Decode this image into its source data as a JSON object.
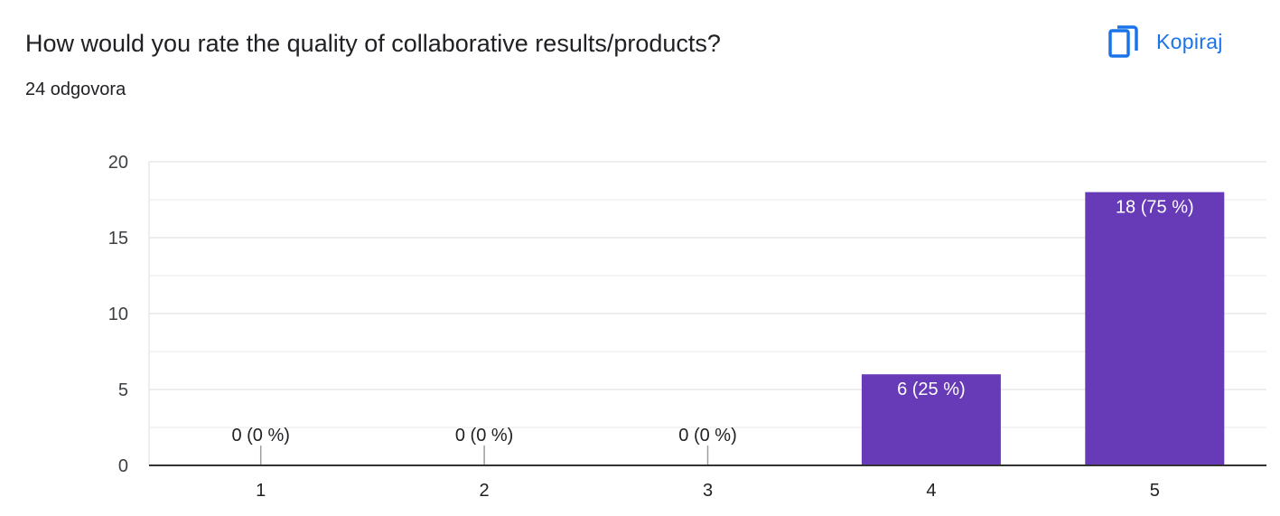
{
  "header": {
    "question": "How would you rate the quality of collaborative results/products?",
    "response_count": "24 odgovora",
    "copy_label": "Kopiraj",
    "copy_icon": "copy-icon"
  },
  "colors": {
    "bar": "#673ab7",
    "accent": "#1a73e8",
    "grid": "#e8e8e8",
    "axis": "#333333"
  },
  "chart_data": {
    "type": "bar",
    "categories": [
      "1",
      "2",
      "3",
      "4",
      "5"
    ],
    "values": [
      0,
      0,
      0,
      6,
      18
    ],
    "data_labels": [
      "0 (0 %)",
      "0 (0 %)",
      "0 (0 %)",
      "6 (25 %)",
      "18 (75 %)"
    ],
    "y_ticks": [
      0,
      5,
      10,
      15,
      20
    ],
    "ylim": [
      0,
      20
    ],
    "grid": true,
    "legend": "none",
    "title": "",
    "xlabel": "",
    "ylabel": ""
  }
}
